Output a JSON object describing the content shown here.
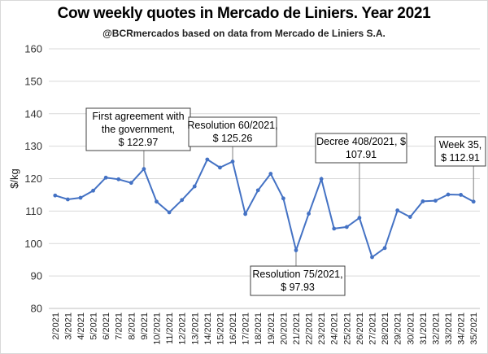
{
  "title": "Cow weekly quotes in Mercado de Liniers. Year 2021",
  "subtitle": "@BCRmercados based on data from Mercado de Liniers S.A.",
  "chart_data": {
    "type": "line",
    "ylabel": "$/kg",
    "xlabel": "",
    "ylim": [
      80,
      160
    ],
    "yticks": [
      80,
      90,
      100,
      110,
      120,
      130,
      140,
      150,
      160
    ],
    "grid": true,
    "legend": "none",
    "series_color": "#4472c4",
    "categories": [
      "2/2021",
      "3/2021",
      "4/2021",
      "5/2021",
      "6/2021",
      "7/2021",
      "8/2021",
      "9/2021",
      "10/2021",
      "11/2021",
      "12/2021",
      "13/2021",
      "14/2021",
      "15/2021",
      "16/2021",
      "17/2021",
      "18/2021",
      "19/2021",
      "20/2021",
      "21/2021",
      "22/2021",
      "23/2021",
      "24/2021",
      "25/2021",
      "26/2021",
      "27/2021",
      "28/2021",
      "29/2021",
      "30/2021",
      "31/2021",
      "32/2021",
      "33/2021",
      "34/2021",
      "35/2021"
    ],
    "values": [
      114.8,
      113.6,
      114.1,
      116.3,
      120.3,
      119.8,
      118.7,
      122.97,
      112.9,
      109.6,
      113.4,
      117.6,
      125.9,
      123.4,
      125.26,
      109.1,
      116.4,
      121.5,
      113.9,
      97.93,
      109.2,
      119.9,
      104.6,
      105.1,
      107.91,
      95.8,
      98.6,
      110.2,
      108.2,
      113.0,
      113.2,
      115.1,
      115.0,
      112.91
    ],
    "annotations": [
      {
        "lines": [
          "First agreement with",
          "the government,",
          "$ 122.97"
        ],
        "point_index": 7
      },
      {
        "lines": [
          "Resolution 60/2021,",
          "$ 125.26"
        ],
        "point_index": 14
      },
      {
        "lines": [
          "Resolution 75/2021,",
          "$ 97.93"
        ],
        "point_index": 19
      },
      {
        "lines": [
          "Decree 408/2021, $",
          "107.91"
        ],
        "point_index": 24
      },
      {
        "lines": [
          "Week 35,",
          "$ 112.91"
        ],
        "point_index": 33
      }
    ]
  }
}
